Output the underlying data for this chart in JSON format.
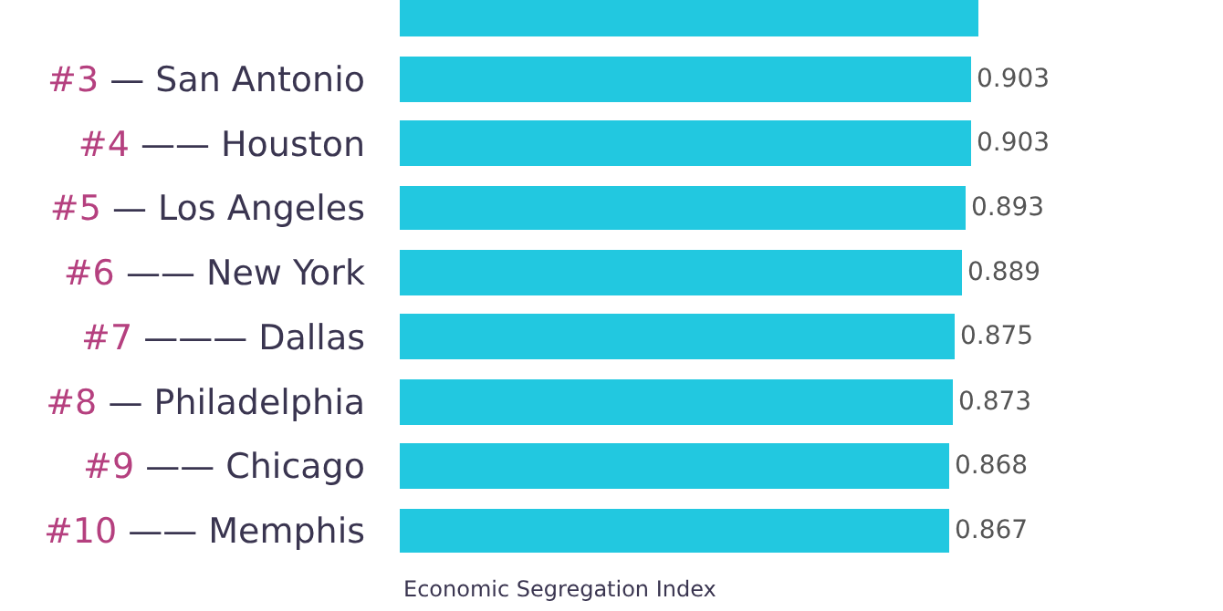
{
  "chart_data": {
    "type": "bar",
    "orientation": "horizontal",
    "xlabel": "Economic Segregation Index",
    "categories": [
      null,
      "#3 — San Antonio",
      "#4 —— Houston",
      "#5 — Los Angeles",
      "#6 —— New York",
      "#7 ——— Dallas",
      "#8 — Philadelphia",
      "#9 —— Chicago",
      "#10 —— Memphis"
    ],
    "values": [
      0.913,
      0.903,
      0.903,
      0.893,
      0.889,
      0.875,
      0.873,
      0.868,
      0.867
    ],
    "value_labels": [
      null,
      "0.903",
      "0.903",
      "0.893",
      "0.889",
      "0.875",
      "0.873",
      "0.868",
      "0.867"
    ],
    "color": "#22c8e0",
    "xlim": [
      0,
      1.3
    ],
    "tick_labels": "y"
  }
}
